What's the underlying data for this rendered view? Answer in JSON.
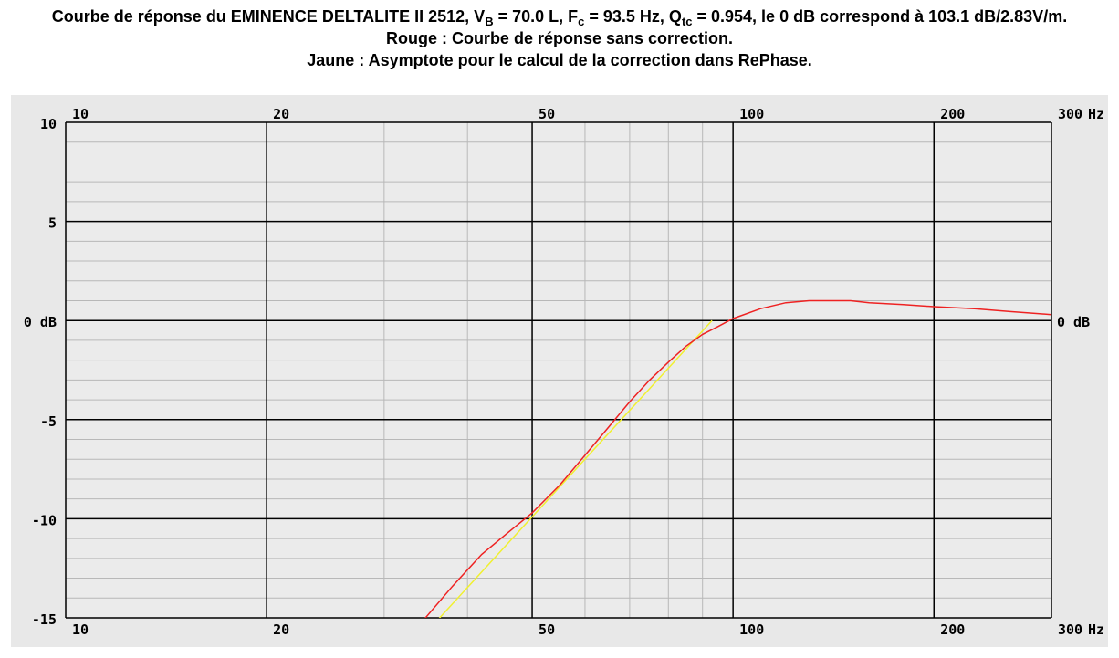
{
  "title": {
    "prefix": "Courbe de réponse du EMINENCE DELTALITE II 2512, V",
    "vb_sub": "B",
    "vb_val": " = 70.0 L, F",
    "fc_sub": "c",
    "fc_val": " = 93.5 Hz, Q",
    "qtc_sub": "tc",
    "qtc_val": " = 0.954, le 0 dB correspond à 103.1 dB/2.83V/m.",
    "red_legend": "Rouge : Courbe de réponse sans correction.",
    "yellow_legend": "Jaune : Asymptote pour le calcul de la correction dans RePhase."
  },
  "colors": {
    "background": "#e8e8e8",
    "plot_bg": "#ebebeb",
    "red_curve": "#ee2222",
    "yellow_curve": "#f0f030",
    "major_grid": "#000000",
    "minor_grid": "#b8b8b8"
  },
  "chart_data": {
    "type": "line",
    "xscale": "log",
    "xlim": [
      10,
      300
    ],
    "ylim": [
      -15,
      10
    ],
    "x_ticks": [
      {
        "value": 10,
        "label": "10"
      },
      {
        "value": 20,
        "label": "20"
      },
      {
        "value": 50,
        "label": "50"
      },
      {
        "value": 100,
        "label": "100"
      },
      {
        "value": 200,
        "label": "200"
      },
      {
        "value": 300,
        "label": "300"
      }
    ],
    "x_unit": "Hz",
    "x_minor": [
      30,
      40,
      60,
      70,
      80,
      90
    ],
    "y_ticks": [
      {
        "value": 10,
        "label": "10"
      },
      {
        "value": 5,
        "label": "5"
      },
      {
        "value": 0,
        "label": "0 dB"
      },
      {
        "value": -5,
        "label": "-5"
      },
      {
        "value": -10,
        "label": "-10"
      },
      {
        "value": -15,
        "label": "-15"
      }
    ],
    "y_right_label": "0 dB",
    "y_minor_step": 1,
    "series": [
      {
        "name": "Rouge : Courbe de réponse sans correction",
        "color": "#ee2222",
        "x": [
          34,
          38,
          42,
          46,
          50,
          55,
          60,
          65,
          70,
          75,
          80,
          85,
          90,
          95,
          100,
          110,
          120,
          130,
          140,
          150,
          160,
          180,
          200,
          230,
          260,
          300
        ],
        "y": [
          -15.3,
          -13.4,
          -11.8,
          -10.7,
          -9.7,
          -8.3,
          -6.8,
          -5.4,
          -4.1,
          -3.0,
          -2.1,
          -1.3,
          -0.7,
          -0.3,
          0.1,
          0.6,
          0.9,
          1.0,
          1.0,
          1.0,
          0.9,
          0.8,
          0.7,
          0.6,
          0.45,
          0.3
        ]
      },
      {
        "name": "Jaune : Asymptote pour le calcul de la correction dans RePhase",
        "color": "#f0f030",
        "x": [
          35,
          93
        ],
        "y": [
          -15.6,
          0.0
        ]
      }
    ]
  }
}
